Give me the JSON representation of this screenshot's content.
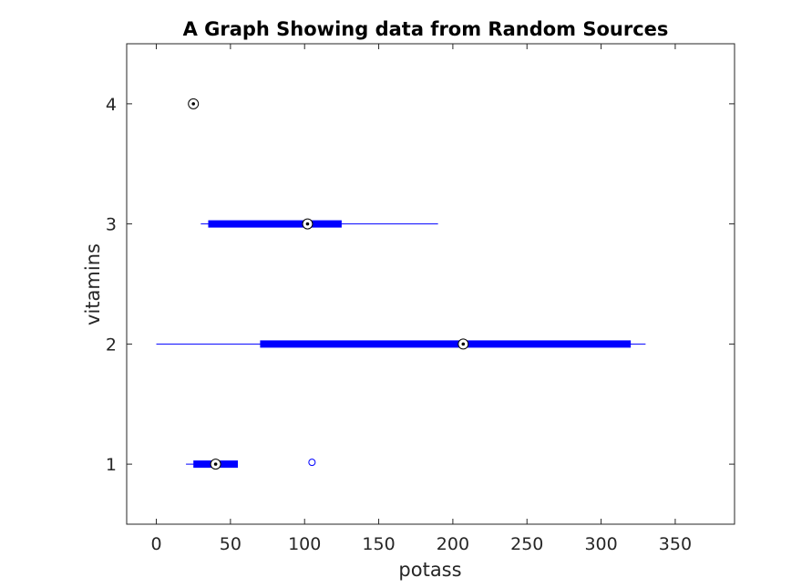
{
  "chart_data": {
    "type": "boxplot",
    "orientation": "horizontal",
    "title": "A Graph Showing data from Random Sources",
    "xlabel": "potass",
    "ylabel": "vitamins",
    "xlim": [
      -20,
      390
    ],
    "ylim": [
      0.5,
      4.5
    ],
    "xticks": [
      0,
      50,
      100,
      150,
      200,
      250,
      300,
      350
    ],
    "yticks": [
      1,
      2,
      3,
      4
    ],
    "grid": false,
    "box_color": "#0000ff",
    "series": [
      {
        "category": "1",
        "whisker_low": 20,
        "q1": 25,
        "median": 40,
        "q3": 55,
        "whisker_high": 55,
        "outliers": [
          105
        ]
      },
      {
        "category": "2",
        "whisker_low": 0,
        "q1": 70,
        "median": 207,
        "q3": 320,
        "whisker_high": 330,
        "outliers": []
      },
      {
        "category": "3",
        "whisker_low": 30,
        "q1": 35,
        "median": 102,
        "q3": 125,
        "whisker_high": 190,
        "outliers": []
      },
      {
        "category": "4",
        "whisker_low": 25,
        "q1": 25,
        "median": 25,
        "q3": 25,
        "whisker_high": 25,
        "outliers": []
      }
    ]
  }
}
